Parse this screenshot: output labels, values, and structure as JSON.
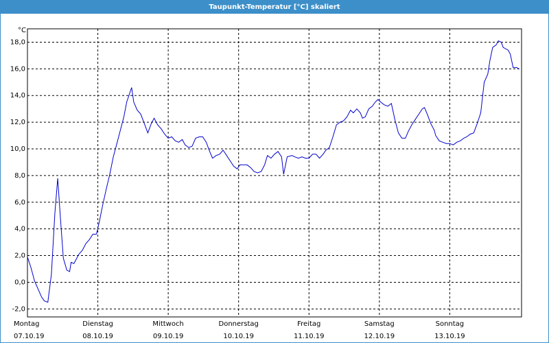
{
  "chart_data": {
    "type": "line",
    "title": "Taupunkt-Temperatur [°C] skaliert",
    "y_unit": "°C",
    "color": "#0000cc",
    "grid": true,
    "ylim": [
      -2.6,
      19.0
    ],
    "yticks": [
      {
        "value": -2,
        "label": "-2,0"
      },
      {
        "value": 0,
        "label": "0,0"
      },
      {
        "value": 2,
        "label": "2,0"
      },
      {
        "value": 4,
        "label": "4,0"
      },
      {
        "value": 6,
        "label": "6,0"
      },
      {
        "value": 8,
        "label": "8,0"
      },
      {
        "value": 10,
        "label": "10,0"
      },
      {
        "value": 12,
        "label": "12,0"
      },
      {
        "value": 14,
        "label": "14,0"
      },
      {
        "value": 16,
        "label": "16,0"
      },
      {
        "value": 18,
        "label": "18,0"
      }
    ],
    "xlim": [
      0,
      7.02
    ],
    "xticks": [
      {
        "value": 0,
        "label": "Montag",
        "date": "07.10.19"
      },
      {
        "value": 1,
        "label": "Dienstag",
        "date": "08.10.19"
      },
      {
        "value": 2,
        "label": "Mittwoch",
        "date": "09.10.19"
      },
      {
        "value": 3,
        "label": "Donnerstag",
        "date": "10.10.19"
      },
      {
        "value": 4,
        "label": "Freitag",
        "date": "11.10.19"
      },
      {
        "value": 5,
        "label": "Samstag",
        "date": "12.10.19"
      },
      {
        "value": 6,
        "label": "Sonntag",
        "date": "13.10.19"
      }
    ],
    "x": [
      0,
      0.05,
      0.1,
      0.15,
      0.2,
      0.24,
      0.29,
      0.34,
      0.39,
      0.43,
      0.47,
      0.51,
      0.56,
      0.6,
      0.62,
      0.66,
      0.73,
      0.78,
      0.83,
      0.88,
      0.93,
      0.98,
      1.02,
      1.07,
      1.12,
      1.17,
      1.22,
      1.27,
      1.32,
      1.37,
      1.41,
      1.48,
      1.51,
      1.56,
      1.61,
      1.66,
      1.71,
      1.76,
      1.8,
      1.85,
      1.9,
      1.95,
      2.0,
      2.05,
      2.1,
      2.15,
      2.2,
      2.24,
      2.29,
      2.34,
      2.39,
      2.44,
      2.49,
      2.54,
      2.59,
      2.63,
      2.68,
      2.73,
      2.78,
      2.83,
      2.88,
      2.93,
      2.98,
      3.02,
      3.07,
      3.12,
      3.17,
      3.22,
      3.27,
      3.32,
      3.37,
      3.41,
      3.46,
      3.51,
      3.56,
      3.61,
      3.64,
      3.69,
      3.76,
      3.8,
      3.85,
      3.9,
      3.95,
      4.0,
      4.05,
      4.1,
      4.15,
      4.2,
      4.24,
      4.29,
      4.34,
      4.39,
      4.44,
      4.49,
      4.54,
      4.59,
      4.63,
      4.68,
      4.73,
      4.76,
      4.8,
      4.85,
      4.9,
      4.94,
      4.98,
      5.02,
      5.07,
      5.12,
      5.17,
      5.22,
      5.27,
      5.32,
      5.37,
      5.41,
      5.46,
      5.51,
      5.56,
      5.61,
      5.64,
      5.68,
      5.73,
      5.78,
      5.8,
      5.85,
      5.9,
      5.95,
      6.0,
      6.05,
      6.1,
      6.15,
      6.2,
      6.24,
      6.29,
      6.34,
      6.39,
      6.44,
      6.49,
      6.54,
      6.57,
      6.61,
      6.66,
      6.69,
      6.73,
      6.76,
      6.83,
      6.86,
      6.9,
      6.95,
      6.98
    ],
    "values": [
      1.9,
      1.1,
      0.1,
      -0.5,
      -1.1,
      -1.4,
      -1.5,
      0.6,
      5.2,
      7.8,
      4.7,
      1.8,
      0.9,
      0.8,
      1.5,
      1.4,
      2.1,
      2.4,
      2.9,
      3.2,
      3.6,
      3.6,
      4.5,
      5.8,
      7.0,
      8.1,
      9.4,
      10.4,
      11.4,
      12.4,
      13.5,
      14.6,
      13.5,
      12.9,
      12.6,
      11.9,
      11.2,
      11.9,
      12.3,
      11.8,
      11.5,
      11.1,
      10.8,
      10.9,
      10.6,
      10.5,
      10.7,
      10.3,
      10.1,
      10.2,
      10.8,
      10.9,
      10.9,
      10.5,
      9.8,
      9.3,
      9.5,
      9.6,
      9.9,
      9.5,
      9.1,
      8.7,
      8.5,
      8.8,
      8.8,
      8.8,
      8.6,
      8.3,
      8.2,
      8.3,
      8.8,
      9.5,
      9.3,
      9.6,
      9.8,
      9.4,
      8.1,
      9.4,
      9.5,
      9.4,
      9.3,
      9.4,
      9.3,
      9.3,
      9.6,
      9.6,
      9.3,
      9.6,
      9.9,
      10.1,
      10.9,
      11.8,
      12.0,
      12.1,
      12.4,
      12.9,
      12.7,
      13.0,
      12.7,
      12.3,
      12.4,
      13.0,
      13.2,
      13.5,
      13.7,
      13.5,
      13.3,
      13.2,
      13.4,
      12.2,
      11.2,
      10.8,
      10.8,
      11.3,
      11.8,
      12.2,
      12.6,
      13.0,
      13.1,
      12.6,
      11.9,
      11.4,
      11.0,
      10.6,
      10.5,
      10.4,
      10.4,
      10.3,
      10.5,
      10.6,
      10.8,
      10.9,
      11.1,
      11.2,
      11.9,
      12.7,
      15.0,
      15.6,
      16.6,
      17.6,
      17.8,
      18.1,
      18.0,
      17.6,
      17.4,
      17.1,
      16.1,
      16.1,
      16.0
    ]
  }
}
